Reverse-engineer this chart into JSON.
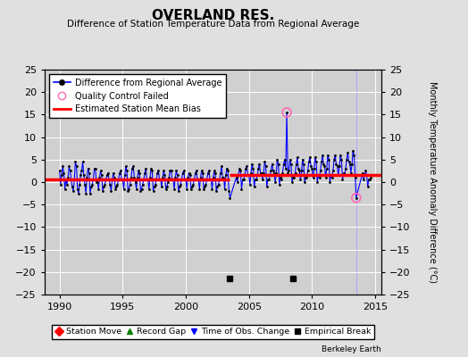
{
  "title": "OVERLAND RES.",
  "subtitle": "Difference of Station Temperature Data from Regional Average",
  "ylabel": "Monthly Temperature Anomaly Difference (°C)",
  "xlim": [
    1988.8,
    2015.5
  ],
  "ylim": [
    -25,
    25
  ],
  "yticks": [
    -25,
    -20,
    -15,
    -10,
    -5,
    0,
    5,
    10,
    15,
    20,
    25
  ],
  "xticks": [
    1990,
    1995,
    2000,
    2005,
    2010,
    2015
  ],
  "bg_color": "#e0e0e0",
  "plot_bg_color": "#d0d0d0",
  "grid_color": "#ffffff",
  "line_color": "#0000ff",
  "bias_color": "#ff0000",
  "bias_seg1_y": 0.5,
  "bias_seg1_xstart": 1988.8,
  "bias_seg1_xend": 2003.5,
  "bias_seg2_y": 1.5,
  "bias_seg2_xstart": 2003.5,
  "bias_seg2_xend": 2015.5,
  "empirical_break_years": [
    2003.5,
    2008.5
  ],
  "empirical_break_y": -21.5,
  "time_of_obs_year": 2013.5,
  "qc_failed_points": [
    [
      2008.0,
      15.5
    ],
    [
      2013.5,
      -3.5
    ]
  ],
  "monthly_data": [
    [
      1990.0,
      2.5
    ],
    [
      1990.083,
      -0.5
    ],
    [
      1990.167,
      1.5
    ],
    [
      1990.25,
      3.5
    ],
    [
      1990.333,
      2.0
    ],
    [
      1990.417,
      -1.5
    ],
    [
      1990.5,
      0.5
    ],
    [
      1990.583,
      -0.5
    ],
    [
      1990.667,
      1.0
    ],
    [
      1990.75,
      3.5
    ],
    [
      1990.833,
      2.5
    ],
    [
      1990.917,
      0.5
    ],
    [
      1991.0,
      -1.0
    ],
    [
      1991.083,
      -2.0
    ],
    [
      1991.167,
      0.5
    ],
    [
      1991.25,
      4.5
    ],
    [
      1991.333,
      3.5
    ],
    [
      1991.417,
      -1.5
    ],
    [
      1991.5,
      -2.5
    ],
    [
      1991.583,
      -0.5
    ],
    [
      1991.667,
      1.5
    ],
    [
      1991.75,
      2.5
    ],
    [
      1991.833,
      4.5
    ],
    [
      1991.917,
      1.5
    ],
    [
      1992.0,
      -0.5
    ],
    [
      1992.083,
      -2.5
    ],
    [
      1992.167,
      1.0
    ],
    [
      1992.25,
      3.0
    ],
    [
      1992.333,
      2.0
    ],
    [
      1992.417,
      -2.5
    ],
    [
      1992.5,
      -1.0
    ],
    [
      1992.583,
      -0.5
    ],
    [
      1992.667,
      0.5
    ],
    [
      1992.75,
      3.0
    ],
    [
      1992.833,
      3.0
    ],
    [
      1992.917,
      0.0
    ],
    [
      1993.0,
      0.0
    ],
    [
      1993.083,
      -1.5
    ],
    [
      1993.167,
      1.0
    ],
    [
      1993.25,
      2.5
    ],
    [
      1993.333,
      1.5
    ],
    [
      1993.417,
      -2.0
    ],
    [
      1993.5,
      -1.0
    ],
    [
      1993.583,
      -0.5
    ],
    [
      1993.667,
      0.5
    ],
    [
      1993.75,
      1.5
    ],
    [
      1993.833,
      2.0
    ],
    [
      1993.917,
      0.5
    ],
    [
      1994.0,
      -0.5
    ],
    [
      1994.083,
      -2.0
    ],
    [
      1994.167,
      0.5
    ],
    [
      1994.25,
      2.0
    ],
    [
      1994.333,
      1.0
    ],
    [
      1994.417,
      -1.5
    ],
    [
      1994.5,
      -1.0
    ],
    [
      1994.583,
      -0.5
    ],
    [
      1994.667,
      0.5
    ],
    [
      1994.75,
      2.0
    ],
    [
      1994.833,
      2.5
    ],
    [
      1994.917,
      0.5
    ],
    [
      1995.0,
      0.5
    ],
    [
      1995.083,
      -1.5
    ],
    [
      1995.167,
      1.5
    ],
    [
      1995.25,
      3.5
    ],
    [
      1995.333,
      2.5
    ],
    [
      1995.417,
      -2.0
    ],
    [
      1995.5,
      -1.5
    ],
    [
      1995.583,
      -0.5
    ],
    [
      1995.667,
      1.0
    ],
    [
      1995.75,
      3.0
    ],
    [
      1995.833,
      3.5
    ],
    [
      1995.917,
      1.0
    ],
    [
      1996.0,
      0.0
    ],
    [
      1996.083,
      -1.5
    ],
    [
      1996.167,
      1.0
    ],
    [
      1996.25,
      2.5
    ],
    [
      1996.333,
      2.0
    ],
    [
      1996.417,
      -2.0
    ],
    [
      1996.5,
      -1.5
    ],
    [
      1996.583,
      -0.5
    ],
    [
      1996.667,
      0.5
    ],
    [
      1996.75,
      2.0
    ],
    [
      1996.833,
      3.0
    ],
    [
      1996.917,
      0.5
    ],
    [
      1997.0,
      0.5
    ],
    [
      1997.083,
      -1.5
    ],
    [
      1997.167,
      1.0
    ],
    [
      1997.25,
      3.0
    ],
    [
      1997.333,
      2.5
    ],
    [
      1997.417,
      -2.0
    ],
    [
      1997.5,
      -1.0
    ],
    [
      1997.583,
      -0.5
    ],
    [
      1997.667,
      0.5
    ],
    [
      1997.75,
      2.0
    ],
    [
      1997.833,
      2.5
    ],
    [
      1997.917,
      0.5
    ],
    [
      1998.0,
      0.5
    ],
    [
      1998.083,
      -1.0
    ],
    [
      1998.167,
      1.0
    ],
    [
      1998.25,
      2.5
    ],
    [
      1998.333,
      1.5
    ],
    [
      1998.417,
      -1.5
    ],
    [
      1998.5,
      -1.0
    ],
    [
      1998.583,
      0.0
    ],
    [
      1998.667,
      1.0
    ],
    [
      1998.75,
      2.5
    ],
    [
      1998.833,
      2.5
    ],
    [
      1998.917,
      0.5
    ],
    [
      1999.0,
      0.5
    ],
    [
      1999.083,
      -1.5
    ],
    [
      1999.167,
      1.0
    ],
    [
      1999.25,
      2.5
    ],
    [
      1999.333,
      1.5
    ],
    [
      1999.417,
      -2.0
    ],
    [
      1999.5,
      -1.0
    ],
    [
      1999.583,
      -0.5
    ],
    [
      1999.667,
      0.5
    ],
    [
      1999.75,
      2.0
    ],
    [
      1999.833,
      2.5
    ],
    [
      1999.917,
      0.5
    ],
    [
      2000.0,
      0.5
    ],
    [
      2000.083,
      -1.5
    ],
    [
      2000.167,
      1.0
    ],
    [
      2000.25,
      2.0
    ],
    [
      2000.333,
      1.5
    ],
    [
      2000.417,
      -1.5
    ],
    [
      2000.5,
      -1.0
    ],
    [
      2000.583,
      -0.5
    ],
    [
      2000.667,
      0.5
    ],
    [
      2000.75,
      2.0
    ],
    [
      2000.833,
      2.5
    ],
    [
      2000.917,
      0.5
    ],
    [
      2001.0,
      0.5
    ],
    [
      2001.083,
      -1.5
    ],
    [
      2001.167,
      1.0
    ],
    [
      2001.25,
      2.5
    ],
    [
      2001.333,
      2.0
    ],
    [
      2001.417,
      -1.5
    ],
    [
      2001.5,
      -1.0
    ],
    [
      2001.583,
      -0.5
    ],
    [
      2001.667,
      0.5
    ],
    [
      2001.75,
      2.0
    ],
    [
      2001.833,
      2.5
    ],
    [
      2001.917,
      0.5
    ],
    [
      2002.0,
      0.5
    ],
    [
      2002.083,
      -1.5
    ],
    [
      2002.167,
      1.0
    ],
    [
      2002.25,
      2.5
    ],
    [
      2002.333,
      2.0
    ],
    [
      2002.417,
      -2.0
    ],
    [
      2002.5,
      -1.0
    ],
    [
      2002.583,
      -0.5
    ],
    [
      2002.667,
      0.5
    ],
    [
      2002.75,
      2.0
    ],
    [
      2002.833,
      3.5
    ],
    [
      2002.917,
      1.0
    ],
    [
      2003.0,
      1.0
    ],
    [
      2003.083,
      -1.5
    ],
    [
      2003.167,
      1.5
    ],
    [
      2003.25,
      3.0
    ],
    [
      2003.333,
      2.5
    ],
    [
      2003.417,
      -2.0
    ],
    [
      2003.5,
      -3.5
    ],
    [
      2004.0,
      1.0
    ],
    [
      2004.083,
      0.0
    ],
    [
      2004.167,
      1.5
    ],
    [
      2004.25,
      3.0
    ],
    [
      2004.333,
      2.5
    ],
    [
      2004.417,
      -1.5
    ],
    [
      2004.5,
      0.5
    ],
    [
      2004.583,
      0.5
    ],
    [
      2004.667,
      1.5
    ],
    [
      2004.75,
      3.0
    ],
    [
      2004.833,
      3.5
    ],
    [
      2004.917,
      1.5
    ],
    [
      2005.0,
      1.5
    ],
    [
      2005.083,
      -0.5
    ],
    [
      2005.167,
      2.0
    ],
    [
      2005.25,
      4.0
    ],
    [
      2005.333,
      3.0
    ],
    [
      2005.417,
      -1.0
    ],
    [
      2005.5,
      0.5
    ],
    [
      2005.583,
      0.5
    ],
    [
      2005.667,
      1.5
    ],
    [
      2005.75,
      3.0
    ],
    [
      2005.833,
      4.0
    ],
    [
      2005.917,
      2.0
    ],
    [
      2006.0,
      2.0
    ],
    [
      2006.083,
      0.5
    ],
    [
      2006.167,
      2.0
    ],
    [
      2006.25,
      4.5
    ],
    [
      2006.333,
      3.5
    ],
    [
      2006.417,
      -1.0
    ],
    [
      2006.5,
      0.5
    ],
    [
      2006.583,
      0.5
    ],
    [
      2006.667,
      1.5
    ],
    [
      2006.75,
      2.5
    ],
    [
      2006.833,
      4.0
    ],
    [
      2006.917,
      2.5
    ],
    [
      2007.0,
      2.0
    ],
    [
      2007.083,
      0.0
    ],
    [
      2007.167,
      2.0
    ],
    [
      2007.25,
      5.0
    ],
    [
      2007.333,
      4.0
    ],
    [
      2007.417,
      -0.5
    ],
    [
      2007.5,
      1.0
    ],
    [
      2007.583,
      0.5
    ],
    [
      2007.667,
      2.0
    ],
    [
      2007.75,
      4.0
    ],
    [
      2007.833,
      5.0
    ],
    [
      2007.917,
      3.0
    ],
    [
      2008.0,
      15.5
    ],
    [
      2008.083,
      2.0
    ],
    [
      2008.167,
      2.5
    ],
    [
      2008.25,
      5.0
    ],
    [
      2008.333,
      4.0
    ],
    [
      2008.417,
      0.0
    ],
    [
      2008.5,
      1.0
    ],
    [
      2008.583,
      1.0
    ],
    [
      2008.667,
      2.0
    ],
    [
      2008.75,
      4.0
    ],
    [
      2008.833,
      5.5
    ],
    [
      2008.917,
      3.0
    ],
    [
      2009.0,
      2.5
    ],
    [
      2009.083,
      0.5
    ],
    [
      2009.167,
      2.5
    ],
    [
      2009.25,
      5.0
    ],
    [
      2009.333,
      4.0
    ],
    [
      2009.417,
      0.0
    ],
    [
      2009.5,
      1.0
    ],
    [
      2009.583,
      1.0
    ],
    [
      2009.667,
      2.5
    ],
    [
      2009.75,
      4.5
    ],
    [
      2009.833,
      5.5
    ],
    [
      2009.917,
      3.5
    ],
    [
      2010.0,
      3.0
    ],
    [
      2010.083,
      1.0
    ],
    [
      2010.167,
      3.0
    ],
    [
      2010.25,
      5.5
    ],
    [
      2010.333,
      4.5
    ],
    [
      2010.417,
      0.0
    ],
    [
      2010.5,
      1.5
    ],
    [
      2010.583,
      1.0
    ],
    [
      2010.667,
      2.5
    ],
    [
      2010.75,
      4.5
    ],
    [
      2010.833,
      6.0
    ],
    [
      2010.917,
      4.0
    ],
    [
      2011.0,
      3.5
    ],
    [
      2011.083,
      1.0
    ],
    [
      2011.167,
      3.0
    ],
    [
      2011.25,
      6.0
    ],
    [
      2011.333,
      5.0
    ],
    [
      2011.417,
      0.0
    ],
    [
      2011.5,
      1.5
    ],
    [
      2011.583,
      1.0
    ],
    [
      2011.667,
      2.5
    ],
    [
      2011.75,
      5.0
    ],
    [
      2011.833,
      6.0
    ],
    [
      2011.917,
      4.0
    ],
    [
      2012.0,
      3.5
    ],
    [
      2012.083,
      1.5
    ],
    [
      2012.167,
      3.5
    ],
    [
      2012.25,
      6.0
    ],
    [
      2012.333,
      5.0
    ],
    [
      2012.417,
      0.5
    ],
    [
      2012.5,
      2.0
    ],
    [
      2012.583,
      1.5
    ],
    [
      2012.667,
      3.0
    ],
    [
      2012.75,
      5.0
    ],
    [
      2012.833,
      6.5
    ],
    [
      2012.917,
      4.5
    ],
    [
      2013.0,
      4.0
    ],
    [
      2013.083,
      2.0
    ],
    [
      2013.167,
      4.0
    ],
    [
      2013.25,
      7.0
    ],
    [
      2013.333,
      6.0
    ],
    [
      2013.417,
      1.0
    ],
    [
      2013.5,
      -3.5
    ],
    [
      2014.0,
      2.0
    ],
    [
      2014.083,
      0.5
    ],
    [
      2014.167,
      1.5
    ],
    [
      2014.25,
      2.5
    ],
    [
      2014.333,
      1.5
    ],
    [
      2014.417,
      -1.0
    ],
    [
      2014.5,
      0.5
    ],
    [
      2014.583,
      0.5
    ],
    [
      2014.667,
      1.0
    ]
  ]
}
